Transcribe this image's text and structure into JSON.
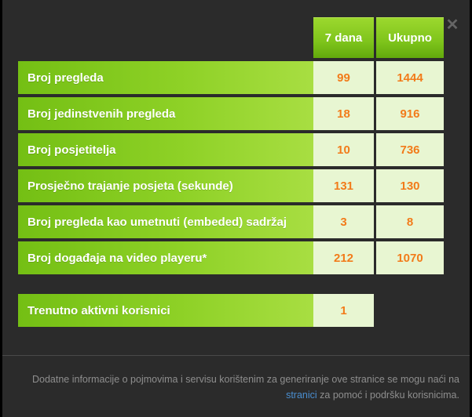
{
  "header": {
    "col_7days": "7 dana",
    "col_total": "Ukupno"
  },
  "stats": [
    {
      "label": "Broj pregleda",
      "d7": "99",
      "total": "1444"
    },
    {
      "label": "Broj jedinstvenih pregleda",
      "d7": "18",
      "total": "916"
    },
    {
      "label": "Broj posjetitelja",
      "d7": "10",
      "total": "736"
    },
    {
      "label": "Prosječno trajanje posjeta (sekunde)",
      "d7": "131",
      "total": "130"
    },
    {
      "label": "Broj pregleda kao umetnuti (embeded) sadržaj",
      "d7": "3",
      "total": "8"
    },
    {
      "label": "Broj događaja na video playeru*",
      "d7": "212",
      "total": "1070"
    }
  ],
  "active": {
    "label": "Trenutno aktivni korisnici",
    "value": "1"
  },
  "footer": {
    "text_before": "Dodatne informacije o pojmovima i servisu korištenim za generiranje ove stranice se mogu naći na",
    "link": "stranici",
    "text_after": "za pomoć i podršku korisnicima."
  },
  "icons": {
    "close": "close-icon"
  },
  "colors": {
    "accent_green": "#8ed126",
    "value_orange": "#f27b1a",
    "link_blue": "#4a8ed0"
  }
}
